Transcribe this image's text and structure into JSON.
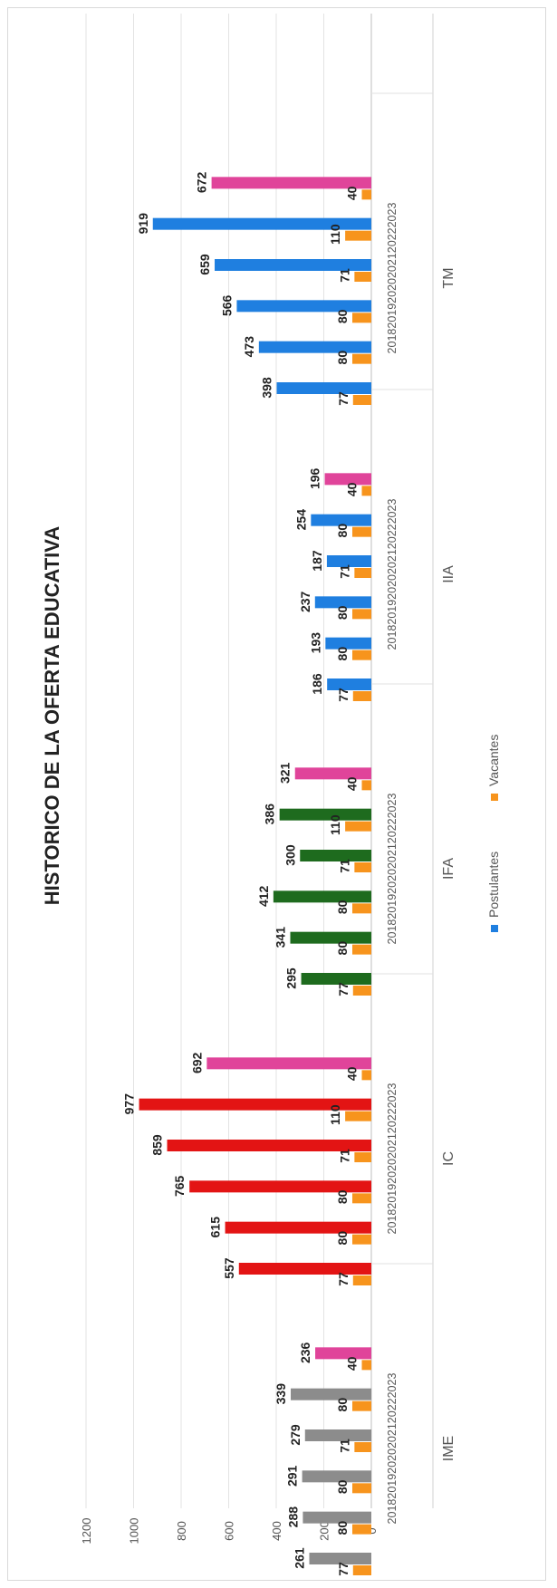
{
  "chart_data": {
    "type": "bar",
    "title": "HISTORICO DE LA OFERTA EDUCATIVA",
    "groups": [
      "IME",
      "IC",
      "IFA",
      "IIA",
      "TM"
    ],
    "years": [
      "2018",
      "2019",
      "2020",
      "2021",
      "2022",
      "2023"
    ],
    "series": [
      {
        "name": "Postulantes",
        "values": [
          [
            261,
            288,
            291,
            279,
            339,
            236
          ],
          [
            557,
            615,
            765,
            859,
            977,
            692
          ],
          [
            295,
            341,
            412,
            300,
            386,
            321
          ],
          [
            186,
            193,
            237,
            187,
            254,
            196
          ],
          [
            398,
            473,
            566,
            659,
            919,
            672
          ]
        ]
      },
      {
        "name": "Vacantes",
        "values": [
          [
            77,
            80,
            80,
            71,
            80,
            40
          ],
          [
            77,
            80,
            80,
            71,
            110,
            40
          ],
          [
            77,
            80,
            80,
            71,
            110,
            40
          ],
          [
            77,
            80,
            80,
            71,
            80,
            40
          ],
          [
            77,
            80,
            80,
            71,
            110,
            40
          ]
        ]
      }
    ],
    "group_colors": [
      "#8c8c8c",
      "#e31414",
      "#1e6b1e",
      "#1f7fe0",
      "#1f7fe0"
    ],
    "last_year_color": "#e0449a",
    "legend_colors": [
      "#1f7fe0",
      "#f7941d"
    ],
    "vacantes_color": "#f7941d",
    "ylim": [
      0,
      1200
    ],
    "yticks": [
      0,
      200,
      400,
      600,
      800,
      1000,
      1200
    ],
    "grid": true,
    "legend_position": "bottom",
    "orientation": "rotated 90 degrees counter-clockwise"
  }
}
